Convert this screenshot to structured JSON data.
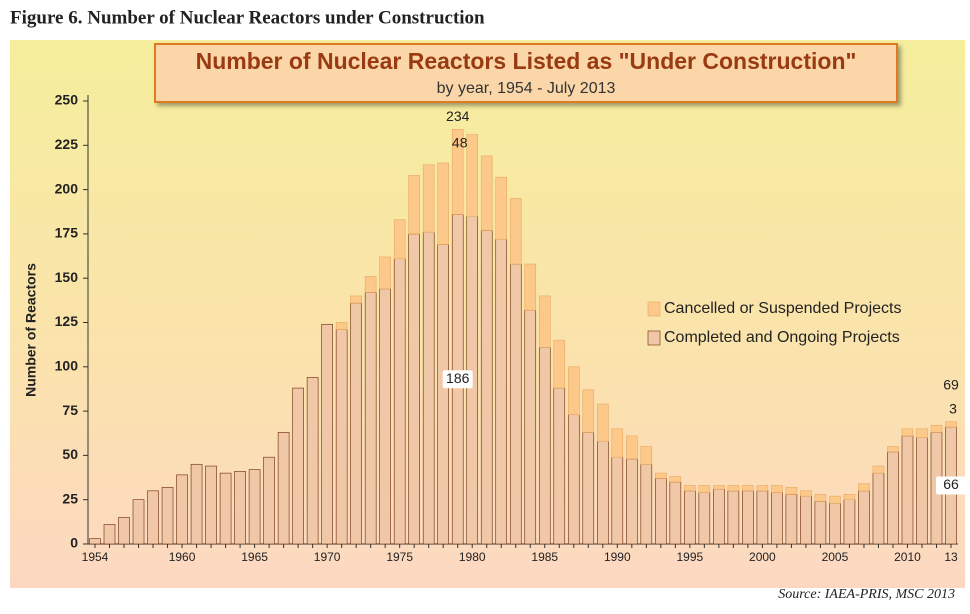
{
  "figure_title": "Figure 6. Number of Nuclear Reactors under Construction",
  "source": "Source: IAEA-PRIS, MSC 2013",
  "chart_data": {
    "type": "bar",
    "stacked": true,
    "title": "Number of Nuclear Reactors Listed as \"Under Construction\"",
    "subtitle": "by year, 1954 - July 2013",
    "ylabel": "Number of Reactors",
    "categories": [
      "1954",
      null,
      null,
      null,
      null,
      null,
      "1960",
      null,
      null,
      null,
      null,
      "1965",
      null,
      null,
      null,
      null,
      "1970",
      null,
      null,
      null,
      null,
      "1975",
      null,
      null,
      null,
      null,
      "1980",
      null,
      null,
      null,
      null,
      "1985",
      null,
      null,
      null,
      null,
      "1990",
      null,
      null,
      null,
      null,
      "1995",
      null,
      null,
      null,
      null,
      "2000",
      null,
      null,
      null,
      null,
      "2005",
      null,
      null,
      null,
      null,
      "2010",
      null,
      null,
      "13"
    ],
    "series": [
      {
        "name": "Completed and Ongoing Projects",
        "color": "#a0461a",
        "values": [
          3,
          11,
          15,
          25,
          30,
          32,
          39,
          45,
          44,
          40,
          41,
          42,
          49,
          63,
          88,
          94,
          124,
          121,
          136,
          142,
          144,
          161,
          175,
          176,
          169,
          186,
          185,
          177,
          172,
          158,
          132,
          111,
          88,
          73,
          63,
          58,
          49,
          48,
          45,
          37,
          35,
          30,
          29,
          31,
          30,
          30,
          30,
          29,
          28,
          27,
          24,
          23,
          25,
          30,
          40,
          52,
          61,
          60,
          63,
          66
        ],
        "value_labels": [
          null,
          null,
          null,
          null,
          null,
          null,
          null,
          null,
          null,
          null,
          null,
          null,
          null,
          null,
          null,
          null,
          null,
          null,
          null,
          null,
          null,
          null,
          null,
          null,
          null,
          "186",
          null,
          null,
          null,
          null,
          null,
          null,
          null,
          null,
          null,
          null,
          null,
          null,
          null,
          null,
          null,
          null,
          null,
          null,
          null,
          null,
          null,
          null,
          null,
          null,
          null,
          null,
          null,
          null,
          null,
          null,
          null,
          null,
          null,
          "66"
        ]
      },
      {
        "name": "Cancelled or Suspended Projects",
        "color": "#fcc98a",
        "values": [
          0,
          0,
          0,
          0,
          0,
          0,
          0,
          0,
          0,
          0,
          0,
          0,
          0,
          0,
          0,
          0,
          0,
          4,
          4,
          9,
          18,
          22,
          33,
          38,
          46,
          48,
          46,
          42,
          35,
          37,
          26,
          29,
          27,
          27,
          24,
          21,
          16,
          13,
          10,
          3,
          3,
          3,
          4,
          2,
          3,
          3,
          3,
          4,
          4,
          3,
          4,
          4,
          3,
          4,
          4,
          3,
          4,
          5,
          4,
          3
        ],
        "value_labels": [
          null,
          null,
          null,
          null,
          null,
          null,
          null,
          null,
          null,
          null,
          null,
          null,
          null,
          null,
          null,
          null,
          null,
          null,
          null,
          null,
          null,
          null,
          null,
          null,
          null,
          "48",
          null,
          null,
          null,
          null,
          null,
          null,
          null,
          null,
          null,
          null,
          null,
          null,
          null,
          null,
          null,
          null,
          null,
          null,
          null,
          null,
          null,
          null,
          null,
          null,
          null,
          null,
          null,
          null,
          null,
          null,
          null,
          null,
          null,
          "3"
        ]
      }
    ],
    "total_labels": [
      null,
      null,
      null,
      null,
      null,
      null,
      null,
      null,
      null,
      null,
      null,
      null,
      null,
      null,
      null,
      null,
      null,
      null,
      null,
      null,
      null,
      null,
      null,
      null,
      null,
      "234",
      null,
      null,
      null,
      null,
      null,
      null,
      null,
      null,
      null,
      null,
      null,
      null,
      null,
      null,
      null,
      null,
      null,
      null,
      null,
      null,
      null,
      null,
      null,
      null,
      null,
      null,
      null,
      null,
      null,
      null,
      null,
      null,
      null,
      "69"
    ],
    "ylim": [
      0,
      250
    ],
    "yticks": [
      0,
      25,
      50,
      75,
      100,
      125,
      150,
      175,
      200,
      225,
      250
    ],
    "legend": "right"
  }
}
